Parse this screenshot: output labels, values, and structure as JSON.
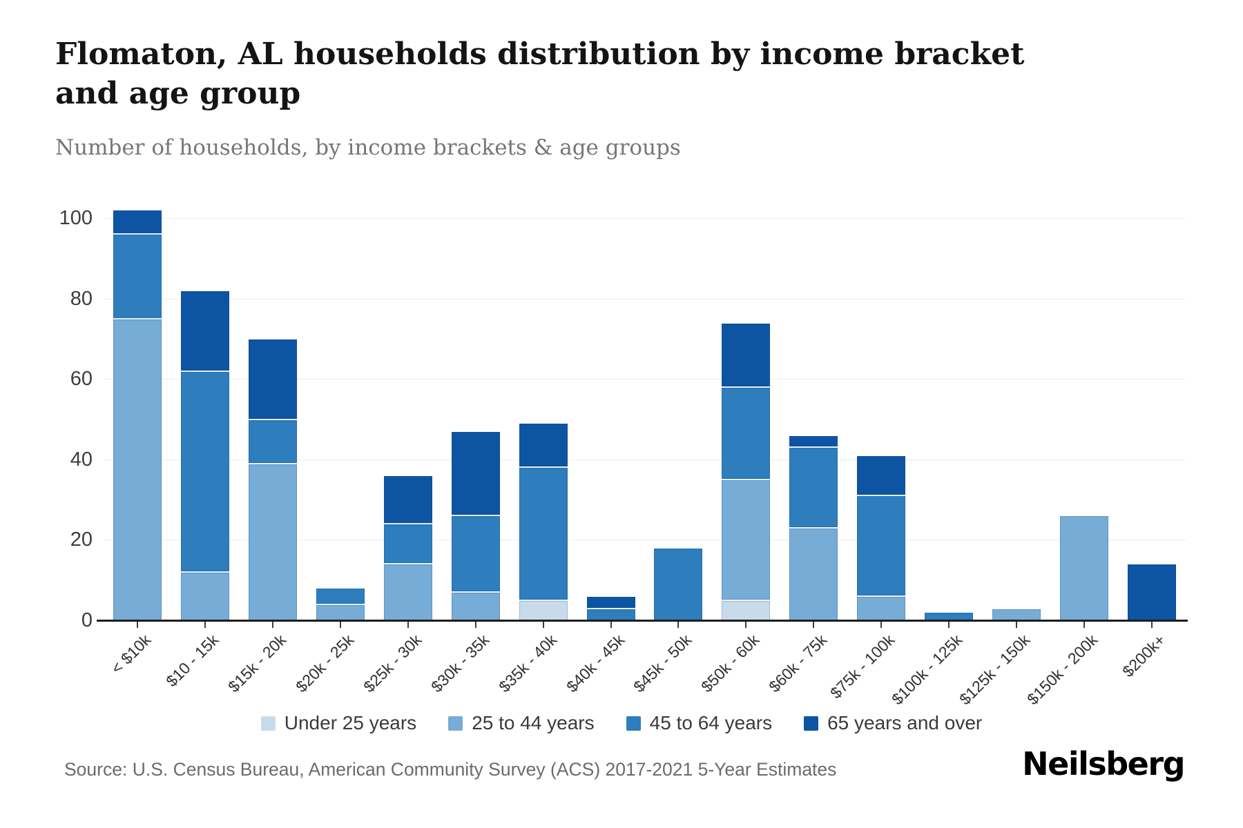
{
  "header": {
    "title": "Flomaton, AL households distribution by income bracket and age group",
    "subtitle": "Number of households, by income brackets & age groups"
  },
  "chart_data": {
    "type": "bar",
    "stacked": true,
    "title": "Flomaton, AL households distribution by income bracket and age group",
    "xlabel": "",
    "ylabel": "Number of households",
    "ylim": [
      0,
      102
    ],
    "yticks": [
      0,
      20,
      40,
      60,
      80,
      100
    ],
    "grid": true,
    "legend_position": "bottom",
    "categories": [
      "< $10k",
      "$10 - 15k",
      "$15k - 20k",
      "$20k - 25k",
      "$25k - 30k",
      "$30k - 35k",
      "$35k - 40k",
      "$40k - 45k",
      "$45k - 50k",
      "$50k - 60k",
      "$60k - 75k",
      "$75k - 100k",
      "$100k - 125k",
      "$125k - 150k",
      "$150k - 200k",
      "$200k+"
    ],
    "series": [
      {
        "name": "Under 25 years",
        "color": "#c8dbeb",
        "values": [
          0,
          0,
          0,
          0,
          0,
          0,
          5,
          0,
          0,
          5,
          0,
          0,
          0,
          0,
          0,
          0
        ]
      },
      {
        "name": "25 to 44 years",
        "color": "#76acd5",
        "values": [
          75,
          12,
          39,
          4,
          14,
          7,
          0,
          0,
          0,
          30,
          23,
          6,
          0,
          3,
          26,
          0
        ]
      },
      {
        "name": "45 to 64 years",
        "color": "#2e7dbd",
        "values": [
          21,
          50,
          11,
          4,
          10,
          19,
          33,
          3,
          18,
          23,
          20,
          25,
          2,
          0,
          0,
          0
        ]
      },
      {
        "name": "65 years and over",
        "color": "#0d55a3",
        "values": [
          6,
          20,
          20,
          0,
          12,
          21,
          11,
          3,
          0,
          16,
          3,
          10,
          0,
          0,
          0,
          14
        ]
      }
    ],
    "totals": [
      102,
      82,
      70,
      8,
      36,
      47,
      49,
      6,
      18,
      74,
      46,
      41,
      2,
      3,
      26,
      14
    ]
  },
  "footer": {
    "source": "Source: U.S. Census Bureau, American Community Survey (ACS) 2017-2021 5-Year Estimates",
    "logo": "Neilsberg"
  }
}
